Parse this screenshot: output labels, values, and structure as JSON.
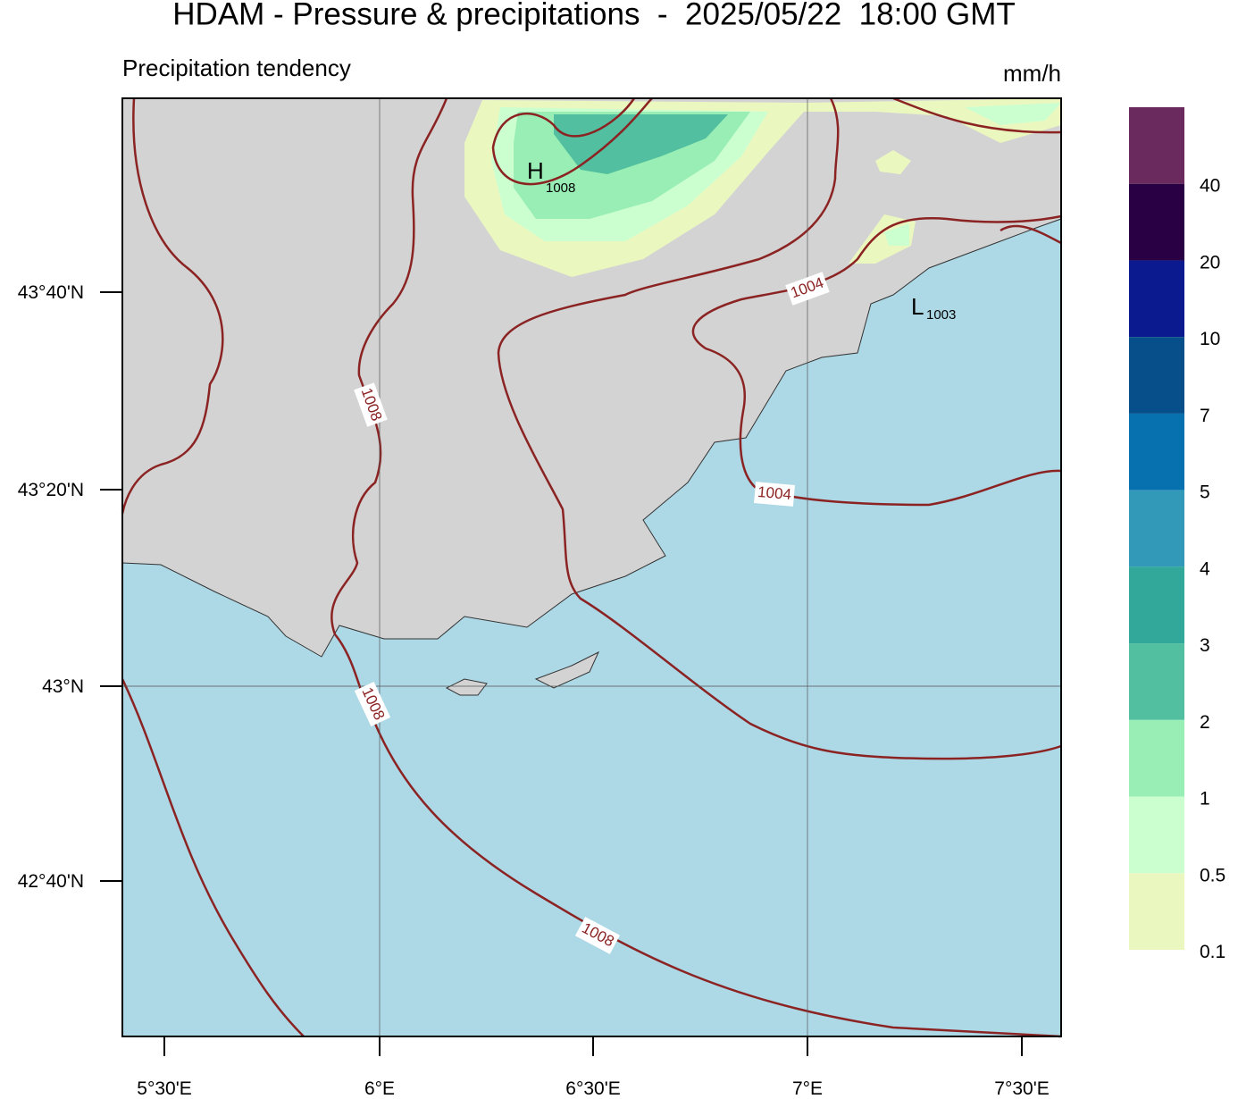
{
  "header": {
    "title": "HDAM - Pressure & precipitations  -  2025/05/22  18:00 GMT",
    "subtitle": "Precipitation tendency",
    "unit": "mm/h"
  },
  "map": {
    "lat_labels": [
      "43°40'N",
      "43°20'N",
      "43°N",
      "42°40'N"
    ],
    "lon_labels": [
      "5°30'E",
      "6°E",
      "6°30'E",
      "7°E",
      "7°30'E"
    ],
    "contour_labels": [
      "1008",
      "1008",
      "1008",
      "1004",
      "1004"
    ],
    "high": {
      "letter": "H",
      "value": "1008"
    },
    "low": {
      "letter": "L",
      "value": "1003"
    }
  },
  "colorbar": {
    "labels": [
      "40",
      "20",
      "10",
      "7",
      "5",
      "4",
      "3",
      "2",
      "1",
      "0.5",
      "0.1"
    ],
    "colors": [
      "#6a2a5e",
      "#2a0044",
      "#0c1a8f",
      "#064f8a",
      "#0771b0",
      "#3399b8",
      "#32a89a",
      "#52c0a0",
      "#98eeb4",
      "#ccffd0",
      "#eaf8c0"
    ]
  }
}
